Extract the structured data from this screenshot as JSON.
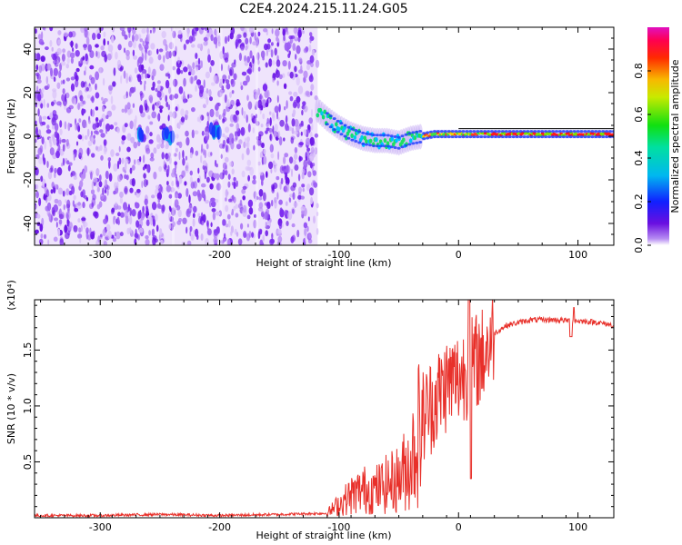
{
  "figure_title": "C2E4.2024.215.11.24.G05",
  "colors": {
    "snr_line": "#e8302a",
    "spectro_base": "#7a1fe0",
    "axis": "#000000"
  },
  "chart_data": [
    {
      "type": "heatmap",
      "xlabel": "Height of straight line (km)",
      "ylabel": "Frequency (Hz)",
      "xlim": [
        -355,
        130
      ],
      "ylim": [
        -50,
        50
      ],
      "xticks": [
        -300,
        -200,
        -100,
        0,
        100
      ],
      "yticks": [
        40,
        20,
        0,
        -20,
        -40
      ],
      "colorbar": {
        "label": "Normalized spectral amplitude",
        "range": [
          0.0,
          1.0
        ],
        "ticks": [
          0.0,
          0.2,
          0.4,
          0.6,
          0.8
        ],
        "colormap": "rainbow (purple-blue-cyan-green-yellow-red-magenta)"
      },
      "data_extent_x": [
        -355,
        -118
      ],
      "carrier_track": [
        {
          "x": -118,
          "y": 12
        },
        {
          "x": -110,
          "y": 8
        },
        {
          "x": -100,
          "y": 4
        },
        {
          "x": -90,
          "y": 1
        },
        {
          "x": -80,
          "y": -1
        },
        {
          "x": -70,
          "y": -2
        },
        {
          "x": -60,
          "y": -2
        },
        {
          "x": -50,
          "y": -3
        },
        {
          "x": -40,
          "y": -1
        },
        {
          "x": -30,
          "y": 0
        },
        {
          "x": -20,
          "y": 1
        },
        {
          "x": -10,
          "y": 1
        },
        {
          "x": 0,
          "y": 1
        },
        {
          "x": 20,
          "y": 1
        },
        {
          "x": 50,
          "y": 1
        },
        {
          "x": 80,
          "y": 1
        },
        {
          "x": 110,
          "y": 1
        },
        {
          "x": 130,
          "y": 1
        }
      ]
    },
    {
      "type": "line",
      "xlabel": "Height of straight line (km)",
      "ylabel": "SNR (10 * v/v)",
      "scale_label": "(x10⁴)",
      "xlim": [
        -355,
        130
      ],
      "ylim": [
        0,
        1.95
      ],
      "xticks": [
        -300,
        -200,
        -100,
        0,
        100
      ],
      "yticks": [
        0.5,
        1.0,
        1.5
      ],
      "ytick_labels": [
        "0.5",
        "1.0",
        "1.5"
      ],
      "series": [
        {
          "points": [
            {
              "x": -355,
              "y": 0.02
            },
            {
              "x": -300,
              "y": 0.02
            },
            {
              "x": -250,
              "y": 0.03
            },
            {
              "x": -200,
              "y": 0.02
            },
            {
              "x": -150,
              "y": 0.03
            },
            {
              "x": -110,
              "y": 0.04
            },
            {
              "x": -100,
              "y": 0.12
            },
            {
              "x": -90,
              "y": 0.2
            },
            {
              "x": -80,
              "y": 0.25
            },
            {
              "x": -70,
              "y": 0.25
            },
            {
              "x": -60,
              "y": 0.3
            },
            {
              "x": -50,
              "y": 0.35
            },
            {
              "x": -40,
              "y": 0.5
            },
            {
              "x": -30,
              "y": 0.9
            },
            {
              "x": -20,
              "y": 1.05
            },
            {
              "x": -10,
              "y": 1.2
            },
            {
              "x": 0,
              "y": 1.25
            },
            {
              "x": 10,
              "y": 1.35
            },
            {
              "x": 20,
              "y": 1.45
            },
            {
              "x": 30,
              "y": 1.65
            },
            {
              "x": 40,
              "y": 1.72
            },
            {
              "x": 60,
              "y": 1.77
            },
            {
              "x": 80,
              "y": 1.77
            },
            {
              "x": 100,
              "y": 1.76
            },
            {
              "x": 115,
              "y": 1.75
            },
            {
              "x": 130,
              "y": 1.72
            }
          ]
        }
      ]
    }
  ]
}
